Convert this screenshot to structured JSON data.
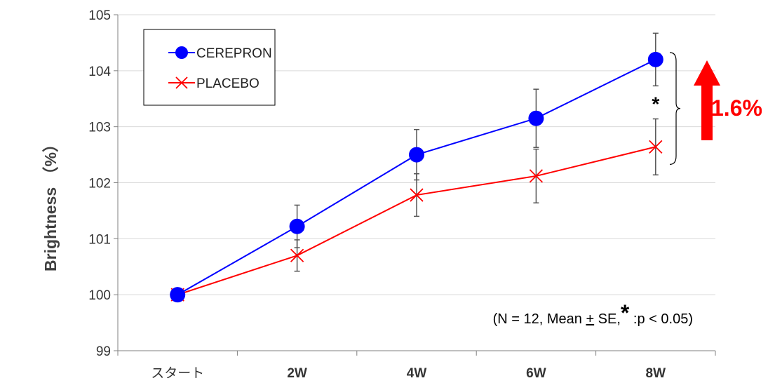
{
  "chart_data": {
    "type": "line",
    "categories": [
      "スタート",
      "2W",
      "4W",
      "6W",
      "8W"
    ],
    "bold_categories": [
      false,
      true,
      true,
      true,
      true
    ],
    "ylabel": "Brightness （%）",
    "xlabel": "",
    "ylim": [
      99,
      105
    ],
    "yticks": [
      99,
      100,
      101,
      102,
      103,
      104,
      105
    ],
    "grid": true,
    "legend_position": "top-left",
    "series": [
      {
        "name": "CEREPRON",
        "values": [
          100.0,
          101.22,
          102.5,
          103.15,
          104.2
        ],
        "errors": [
          0,
          0.38,
          0.45,
          0.52,
          0.47
        ],
        "color": "#0000ff",
        "marker": "circle"
      },
      {
        "name": "PLACEBO",
        "values": [
          100.0,
          100.7,
          101.78,
          102.12,
          102.64
        ],
        "errors": [
          0,
          0.28,
          0.38,
          0.48,
          0.5
        ],
        "color": "#ff0000",
        "marker": "x"
      }
    ],
    "annotations": {
      "note": "(N = 12, Mean ± SE, * :p < 0.05)",
      "note_parts": {
        "prefix": "(N = 12, Mean ",
        "pm_symbol": "+",
        "mid": " SE,",
        "star": "*",
        "suffix": " :p < 0.05)"
      },
      "significance": "*",
      "difference_label": "1.6%",
      "arrow_color": "#ff0000"
    }
  }
}
